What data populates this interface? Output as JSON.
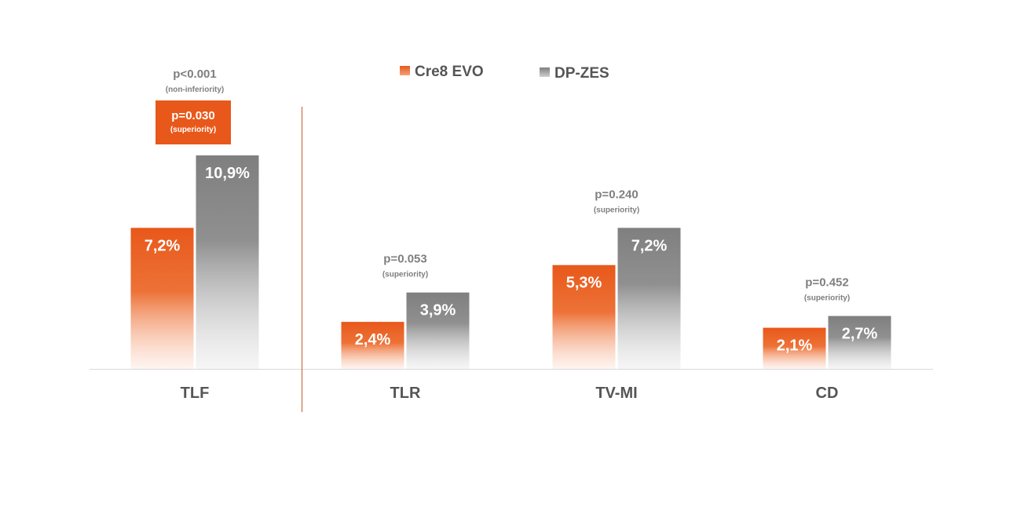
{
  "chart_data": {
    "type": "bar",
    "categories": [
      "TLF",
      "TLR",
      "TV-MI",
      "CD"
    ],
    "series": [
      {
        "name": "Cre8 EVO",
        "values": [
          7.2,
          2.4,
          5.3,
          2.1
        ],
        "labels": [
          "7,2%",
          "2,4%",
          "5,3%",
          "2,1%"
        ],
        "color": "#e8581a"
      },
      {
        "name": "DP-ZES",
        "values": [
          10.9,
          3.9,
          7.2,
          2.7
        ],
        "labels": [
          "10,9%",
          "3,9%",
          "7,2%",
          "2,7%"
        ],
        "color": "#808080"
      }
    ],
    "annotations": [
      {
        "category": "TLF",
        "text": "p<0.001",
        "sub": "(non-inferiority)",
        "highlight": false
      },
      {
        "category": "TLF",
        "text": "p=0.030",
        "sub": "(superiority)",
        "highlight": true,
        "highlight_color": "#e8581a"
      },
      {
        "category": "TLR",
        "text": "p=0.053",
        "sub": "(superiority)",
        "highlight": false
      },
      {
        "category": "TV-MI",
        "text": "p=0.240",
        "sub": "(superiority)",
        "highlight": false
      },
      {
        "category": "CD",
        "text": "p=0.452",
        "sub": "(superiority)",
        "highlight": false
      }
    ],
    "ylim": [
      0,
      10.9
    ],
    "grid": false,
    "legend_position": "top-center",
    "separator_after": "TLF",
    "title": "",
    "xlabel": "",
    "ylabel": ""
  }
}
